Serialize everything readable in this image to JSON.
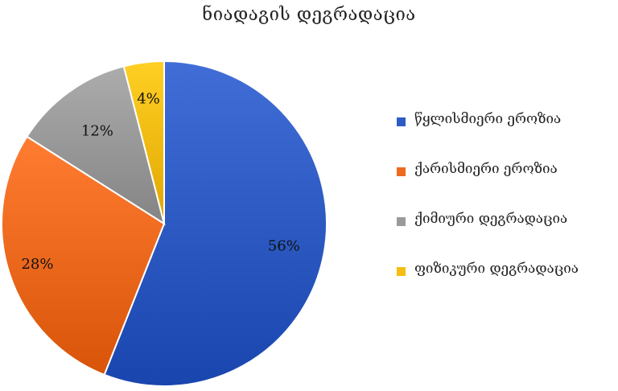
{
  "chart_data": {
    "type": "pie",
    "title": "ნიადაგის  დეგრადაცია",
    "categories": [
      "წყლისმიერი ეროზია",
      "ქარისმიერი ეროზია",
      "ქიმიური დეგრადაცია",
      "ფიზიკური დეგრადაცია"
    ],
    "values": [
      56,
      28,
      12,
      4
    ],
    "data_labels": [
      "56%",
      "28%",
      "12%",
      "4%"
    ],
    "colors": [
      "#2f5cc4",
      "#ee6a1f",
      "#9a9a9a",
      "#f6bd12"
    ],
    "legend_position": "right"
  }
}
